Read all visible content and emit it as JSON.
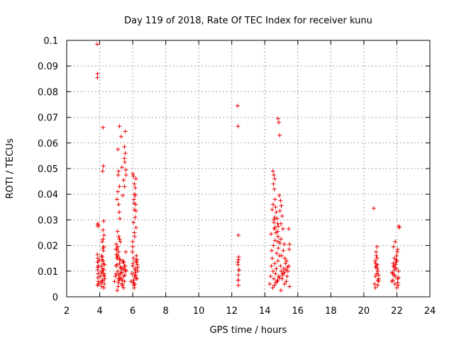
{
  "chart_data": {
    "type": "scatter",
    "title": "Day 119 of 2018, Rate Of TEC Index for receiver kunu",
    "xlabel": "GPS time / hours",
    "ylabel": "ROTI / TECUs",
    "xlim": [
      2,
      24
    ],
    "ylim": [
      0,
      0.1
    ],
    "xticks": [
      "2",
      "4",
      "6",
      "8",
      "10",
      "12",
      "14",
      "16",
      "18",
      "20",
      "22",
      "24"
    ],
    "yticks": [
      "0",
      "0.01",
      "0.02",
      "0.03",
      "0.04",
      "0.05",
      "0.06",
      "0.07",
      "0.08",
      "0.09",
      "0.1"
    ],
    "grid": true,
    "marker": "+",
    "color": "#ee0000",
    "series": [
      {
        "x": [
          3.85,
          3.87,
          3.86,
          3.88,
          3.9,
          3.86,
          3.89,
          3.87,
          3.92,
          3.88,
          3.9,
          3.89,
          3.91,
          3.93,
          3.87,
          3.9,
          3.95,
          3.88,
          4.05,
          4.1,
          4.12,
          4.15,
          4.18,
          4.2,
          4.22,
          4.25,
          4.28,
          4.3,
          4.12,
          4.18,
          4.22,
          4.28,
          4.2,
          4.15,
          4.25,
          4.1,
          4.3,
          4.16,
          4.26,
          4.08,
          4.24,
          4.14,
          4.2,
          4.22,
          4.18,
          4.24,
          4.2,
          4.26,
          4.15,
          4.25,
          4.2,
          4.9,
          4.95,
          5.0,
          5.05,
          5.1,
          5.15,
          5.2,
          5.25,
          5.3,
          5.35,
          5.4,
          5.45,
          5.5,
          5.55,
          5.6,
          5.02,
          5.12,
          5.22,
          5.32,
          5.42,
          5.52,
          5.08,
          5.18,
          5.28,
          5.38,
          5.48,
          5.58,
          5.04,
          5.14,
          5.24,
          5.34,
          5.44,
          4.98,
          5.06,
          5.16,
          5.26,
          5.36,
          5.46,
          5.56,
          5.1,
          5.3,
          5.5,
          5.0,
          5.2,
          5.4,
          5.05,
          5.1,
          5.15,
          5.2,
          5.12,
          5.18,
          5.22,
          5.08,
          5.15,
          5.25,
          5.0,
          5.1,
          5.2,
          5.05,
          5.15,
          5.2,
          5.3,
          5.5,
          5.55,
          5.5,
          5.52,
          5.58,
          5.6,
          5.45,
          5.55,
          5.5,
          5.4,
          5.35,
          5.1,
          5.15,
          5.9,
          5.95,
          6.0,
          6.05,
          6.1,
          6.15,
          6.2,
          6.25,
          6.3,
          6.02,
          6.12,
          6.22,
          6.08,
          6.18,
          6.28,
          5.98,
          6.06,
          6.16,
          6.26,
          6.04,
          6.14,
          6.24,
          6.0,
          6.1,
          6.2,
          6.3,
          6.0,
          6.05,
          6.1,
          6.15,
          6.2,
          6.12,
          6.08,
          6.18,
          6.1,
          6.15,
          6.05,
          6.2,
          6.1,
          6.12,
          6.0,
          6.15,
          6.08,
          6.2,
          12.35,
          12.38,
          12.4,
          12.42,
          12.36,
          12.44,
          12.4,
          12.38,
          12.4,
          12.42,
          12.38,
          12.4,
          12.41,
          14.3,
          14.35,
          14.4,
          14.45,
          14.5,
          14.55,
          14.6,
          14.65,
          14.7,
          14.75,
          14.8,
          14.85,
          14.9,
          14.95,
          15.0,
          15.05,
          15.1,
          15.15,
          15.2,
          15.25,
          15.3,
          15.35,
          15.4,
          15.45,
          15.5,
          14.42,
          14.52,
          14.62,
          14.72,
          14.82,
          14.92,
          15.02,
          15.12,
          15.22,
          15.32,
          14.48,
          14.58,
          14.68,
          14.78,
          14.88,
          14.98,
          15.08,
          15.18,
          15.28,
          15.38,
          14.38,
          14.58,
          14.78,
          14.98,
          15.18,
          14.5,
          14.55,
          14.6,
          14.52,
          14.58,
          14.62,
          14.65,
          14.7,
          14.6,
          14.55,
          14.62,
          14.68,
          14.45,
          14.5,
          14.55,
          14.8,
          14.85,
          14.9,
          14.88,
          14.95,
          15.0,
          14.92,
          15.05,
          14.98,
          15.1,
          14.75,
          14.82,
          14.78,
          14.8,
          14.8,
          15.45,
          15.5,
          15.48,
          20.65,
          20.7,
          20.75,
          20.8,
          20.85,
          20.9,
          20.72,
          20.78,
          20.82,
          20.88,
          20.68,
          20.76,
          20.84,
          20.74,
          20.86,
          20.8,
          20.7,
          20.9,
          20.72,
          20.82,
          20.6,
          21.7,
          21.75,
          21.8,
          21.85,
          21.9,
          21.95,
          22.0,
          22.05,
          22.1,
          21.78,
          21.88,
          21.98,
          22.08,
          21.82,
          21.92,
          22.02,
          21.76,
          21.86,
          21.96,
          22.06,
          21.8,
          21.9,
          22.0,
          22.1,
          21.85,
          21.95,
          22.12,
          22.15,
          22.05,
          21.72
        ],
        "y": [
          0.0985,
          0.087,
          0.0855,
          0.0285,
          0.0275,
          0.0165,
          0.015,
          0.0135,
          0.012,
          0.0105,
          0.009,
          0.0075,
          0.006,
          0.005,
          0.0045,
          0.028,
          0.014,
          0.0115,
          0.008,
          0.012,
          0.016,
          0.01,
          0.006,
          0.014,
          0.018,
          0.009,
          0.005,
          0.007,
          0.004,
          0.011,
          0.013,
          0.008,
          0.019,
          0.0065,
          0.0035,
          0.0095,
          0.0125,
          0.0155,
          0.0085,
          0.0055,
          0.0105,
          0.0145,
          0.066,
          0.051,
          0.049,
          0.0295,
          0.026,
          0.024,
          0.0215,
          0.0195,
          0.0225,
          0.006,
          0.008,
          0.012,
          0.015,
          0.01,
          0.007,
          0.013,
          0.009,
          0.011,
          0.005,
          0.014,
          0.008,
          0.006,
          0.012,
          0.01,
          0.0165,
          0.004,
          0.0075,
          0.0095,
          0.0135,
          0.0085,
          0.0155,
          0.0065,
          0.0115,
          0.0045,
          0.0105,
          0.0175,
          0.0125,
          0.0055,
          0.0145,
          0.0095,
          0.0035,
          0.0185,
          0.0025,
          0.0085,
          0.0115,
          0.0065,
          0.0135,
          0.0105,
          0.016,
          0.007,
          0.012,
          0.009,
          0.0145,
          0.011,
          0.038,
          0.041,
          0.036,
          0.043,
          0.0475,
          0.033,
          0.0305,
          0.0255,
          0.0235,
          0.0215,
          0.0205,
          0.0195,
          0.0225,
          0.0185,
          0.0175,
          0.0665,
          0.0625,
          0.0585,
          0.056,
          0.054,
          0.0525,
          0.0495,
          0.0475,
          0.0455,
          0.0645,
          0.043,
          0.0395,
          0.0505,
          0.0575,
          0.049,
          0.006,
          0.009,
          0.012,
          0.015,
          0.008,
          0.011,
          0.014,
          0.007,
          0.01,
          0.013,
          0.005,
          0.016,
          0.0045,
          0.0085,
          0.0125,
          0.0175,
          0.0065,
          0.0105,
          0.0145,
          0.0055,
          0.0095,
          0.0135,
          0.0195,
          0.0035,
          0.0075,
          0.0115,
          0.048,
          0.047,
          0.044,
          0.0425,
          0.046,
          0.04,
          0.038,
          0.036,
          0.034,
          0.031,
          0.029,
          0.027,
          0.025,
          0.0235,
          0.0215,
          0.0395,
          0.0365,
          0.0335,
          0.0745,
          0.0665,
          0.024,
          0.0155,
          0.0135,
          0.0105,
          0.0085,
          0.0065,
          0.0045,
          0.0105,
          0.0125,
          0.0065,
          0.0145,
          0.005,
          0.008,
          0.012,
          0.015,
          0.01,
          0.007,
          0.013,
          0.009,
          0.011,
          0.006,
          0.014,
          0.008,
          0.016,
          0.012,
          0.01,
          0.007,
          0.009,
          0.011,
          0.005,
          0.013,
          0.006,
          0.008,
          0.01,
          0.012,
          0.004,
          0.018,
          0.02,
          0.022,
          0.017,
          0.019,
          0.021,
          0.016,
          0.018,
          0.015,
          0.014,
          0.0035,
          0.0045,
          0.0055,
          0.0065,
          0.0075,
          0.0025,
          0.0085,
          0.0095,
          0.0105,
          0.0115,
          0.0245,
          0.0265,
          0.0285,
          0.0225,
          0.0205,
          0.049,
          0.0475,
          0.046,
          0.044,
          0.042,
          0.038,
          0.035,
          0.033,
          0.031,
          0.029,
          0.027,
          0.025,
          0.034,
          0.036,
          0.03,
          0.0695,
          0.068,
          0.063,
          0.0395,
          0.0375,
          0.0355,
          0.0335,
          0.0315,
          0.0285,
          0.0265,
          0.0305,
          0.0275,
          0.0255,
          0.0235,
          0.0215,
          0.0265,
          0.0205,
          0.0185,
          0.005,
          0.008,
          0.012,
          0.015,
          0.01,
          0.007,
          0.013,
          0.009,
          0.011,
          0.006,
          0.014,
          0.016,
          0.0045,
          0.0175,
          0.0065,
          0.0195,
          0.0035,
          0.0085,
          0.0115,
          0.0125,
          0.0345,
          0.006,
          0.009,
          0.012,
          0.015,
          0.008,
          0.011,
          0.014,
          0.007,
          0.01,
          0.013,
          0.005,
          0.016,
          0.0045,
          0.0085,
          0.0125,
          0.0175,
          0.0065,
          0.0105,
          0.0145,
          0.0055,
          0.0195,
          0.0215,
          0.0035,
          0.0075,
          0.0115,
          0.0135,
          0.0275,
          0.027,
          0.0185,
          0.0095
        ]
      }
    ]
  }
}
